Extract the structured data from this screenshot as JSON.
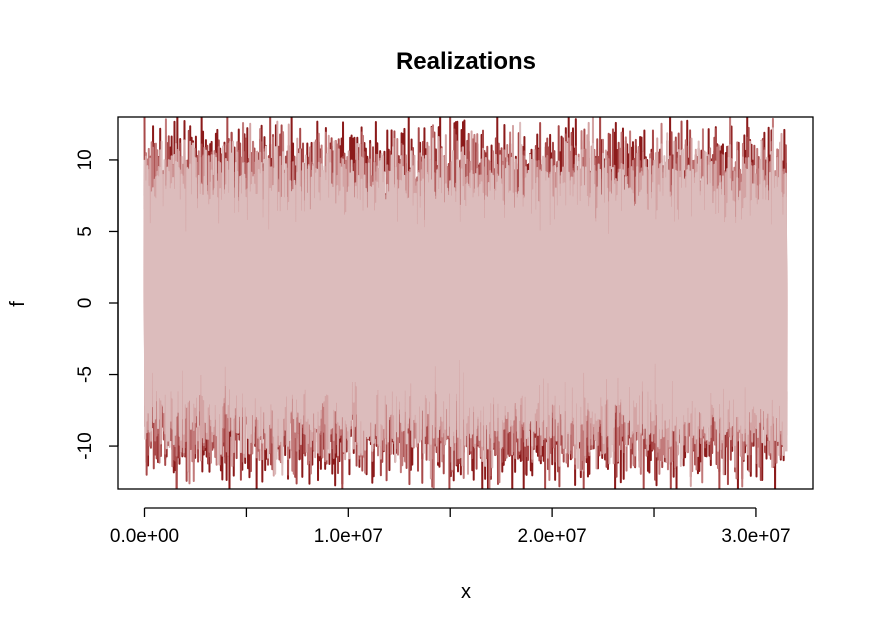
{
  "chart_data": {
    "type": "line",
    "title": "Realizations",
    "xlabel": "x",
    "ylabel": "f",
    "xlim": [
      -1300000,
      32800000
    ],
    "ylim": [
      -13,
      13
    ],
    "x_ticks": [
      0,
      5000000,
      10000000,
      15000000,
      20000000,
      25000000,
      30000000
    ],
    "x_tick_labels": [
      "0.0e+00",
      "",
      "1.0e+07",
      "",
      "2.0e+07",
      "",
      "3.0e+07"
    ],
    "y_ticks": [
      -10,
      -5,
      0,
      5,
      10
    ],
    "y_tick_labels": [
      "-10",
      "-5",
      "0",
      "5",
      "10"
    ],
    "grid": false,
    "x_range_of_data": [
      0,
      31500000
    ],
    "series": [
      {
        "color": "#8b1a1a",
        "amplitude_envelope": 11.5
      },
      {
        "color": "#a94a4a",
        "amplitude_envelope": 11.0
      },
      {
        "color": "#c27a7a",
        "amplitude_envelope": 10.5
      },
      {
        "color": "#d4a4a4",
        "amplitude_envelope": 10.0
      },
      {
        "color": "#dcbcbc",
        "amplitude_envelope": 9.5
      }
    ]
  }
}
